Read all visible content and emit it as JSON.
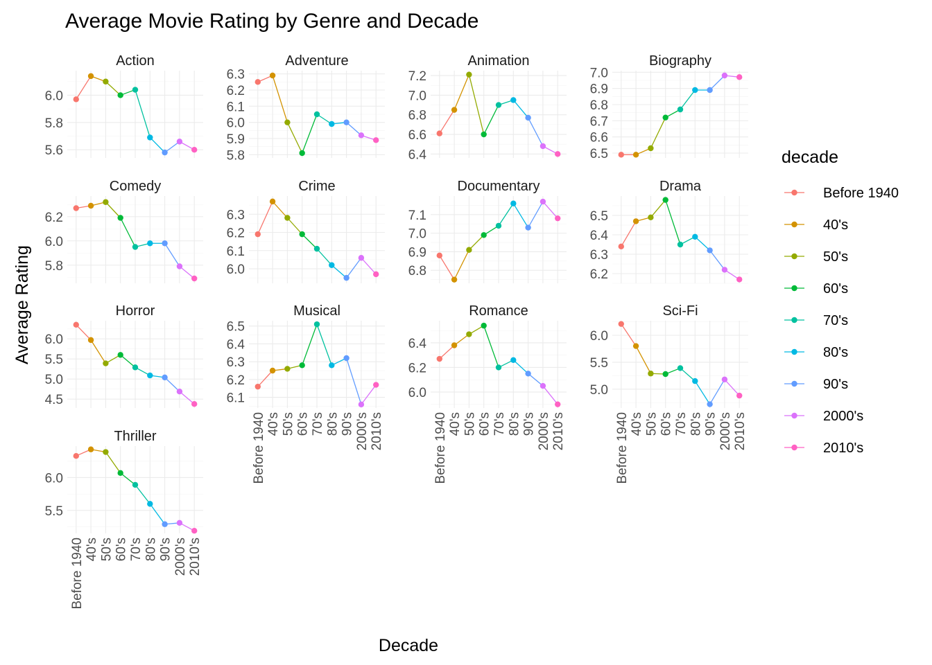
{
  "chart_data": {
    "type": "line",
    "title": "Average Movie Rating by Genre and Decade",
    "xlabel": "Decade",
    "ylabel": "Average Rating",
    "legend_title": "decade",
    "legend_position": "right",
    "grid": true,
    "facet_ncol": 4,
    "categories": [
      "Before 1940",
      "40's",
      "50's",
      "60's",
      "70's",
      "80's",
      "90's",
      "2000's",
      "2010's"
    ],
    "colors": [
      "#F8766D",
      "#D39200",
      "#93AA00",
      "#00BA38",
      "#00C19F",
      "#00B9E3",
      "#619CFF",
      "#DB72FB",
      "#FF61C3"
    ],
    "facets": [
      {
        "name": "Action",
        "values": [
          5.97,
          6.14,
          6.1,
          6.0,
          6.04,
          5.69,
          5.58,
          5.66,
          5.6
        ],
        "yticks": [
          "5.6",
          "5.8",
          "6.0"
        ],
        "ylim": [
          5.54,
          6.18
        ]
      },
      {
        "name": "Adventure",
        "values": [
          6.25,
          6.29,
          6.0,
          5.81,
          6.05,
          5.99,
          6.0,
          5.92,
          5.89
        ],
        "yticks": [
          "5.8",
          "5.9",
          "6.0",
          "6.1",
          "6.2",
          "6.3"
        ],
        "ylim": [
          5.78,
          6.32
        ]
      },
      {
        "name": "Animation",
        "values": [
          6.61,
          6.85,
          7.21,
          6.6,
          6.9,
          6.95,
          6.77,
          6.48,
          6.4
        ],
        "yticks": [
          "6.4",
          "6.6",
          "6.8",
          "7.0",
          "7.2"
        ],
        "ylim": [
          6.36,
          7.25
        ]
      },
      {
        "name": "Biography",
        "values": [
          6.49,
          6.49,
          6.53,
          6.72,
          6.77,
          6.89,
          6.89,
          6.98,
          6.97
        ],
        "yticks": [
          "6.5",
          "6.6",
          "6.7",
          "6.8",
          "6.9",
          "7.0"
        ],
        "ylim": [
          6.47,
          7.01
        ]
      },
      {
        "name": "Comedy",
        "values": [
          6.27,
          6.29,
          6.32,
          6.19,
          5.95,
          5.98,
          5.98,
          5.79,
          5.69
        ],
        "yticks": [
          "5.8",
          "6.0",
          "6.2"
        ],
        "ylim": [
          5.65,
          6.37
        ]
      },
      {
        "name": "Crime",
        "values": [
          6.19,
          6.37,
          6.28,
          6.19,
          6.11,
          6.02,
          5.95,
          6.06,
          5.97
        ],
        "yticks": [
          "6.0",
          "6.1",
          "6.2",
          "6.3"
        ],
        "ylim": [
          5.92,
          6.4
        ]
      },
      {
        "name": "Documentary",
        "values": [
          6.88,
          6.75,
          6.91,
          6.99,
          7.04,
          7.16,
          7.03,
          7.17,
          7.08
        ],
        "yticks": [
          "6.8",
          "6.9",
          "7.0",
          "7.1"
        ],
        "ylim": [
          6.73,
          7.2
        ]
      },
      {
        "name": "Drama",
        "values": [
          6.34,
          6.47,
          6.49,
          6.58,
          6.35,
          6.39,
          6.32,
          6.22,
          6.17
        ],
        "yticks": [
          "6.2",
          "6.3",
          "6.4",
          "6.5"
        ],
        "ylim": [
          6.15,
          6.6
        ]
      },
      {
        "name": "Horror",
        "values": [
          6.35,
          5.97,
          5.39,
          5.6,
          5.29,
          5.09,
          5.04,
          4.69,
          4.38
        ],
        "yticks": [
          "4.5",
          "5.0",
          "5.5",
          "6.0"
        ],
        "ylim": [
          4.28,
          6.45
        ]
      },
      {
        "name": "Musical",
        "values": [
          6.16,
          6.25,
          6.26,
          6.28,
          6.51,
          6.28,
          6.32,
          6.06,
          6.17
        ],
        "yticks": [
          "6.1",
          "6.2",
          "6.3",
          "6.4",
          "6.5"
        ],
        "ylim": [
          6.04,
          6.53
        ]
      },
      {
        "name": "Romance",
        "values": [
          6.27,
          6.38,
          6.47,
          6.54,
          6.2,
          6.26,
          6.15,
          6.05,
          5.9
        ],
        "yticks": [
          "6.0",
          "6.2",
          "6.4"
        ],
        "ylim": [
          5.87,
          6.58
        ]
      },
      {
        "name": "Sci-Fi",
        "values": [
          6.21,
          5.8,
          5.29,
          5.28,
          5.39,
          5.15,
          4.72,
          5.18,
          4.88
        ],
        "yticks": [
          "5.0",
          "5.5",
          "6.0"
        ],
        "ylim": [
          4.65,
          6.27
        ]
      },
      {
        "name": "Thriller",
        "values": [
          6.33,
          6.43,
          6.39,
          6.07,
          5.89,
          5.6,
          5.29,
          5.31,
          5.19
        ],
        "yticks": [
          "5.5",
          "6.0"
        ],
        "ylim": [
          5.15,
          6.48
        ]
      }
    ]
  }
}
